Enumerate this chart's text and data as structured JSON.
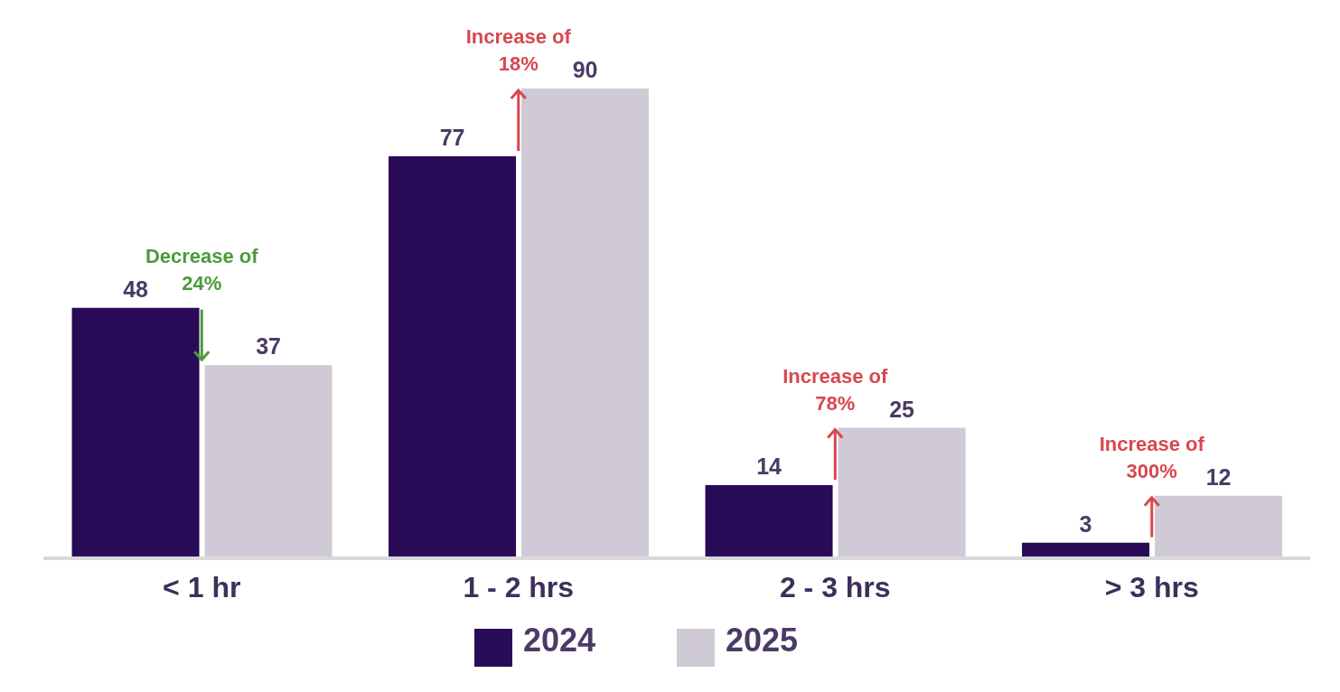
{
  "chart_data": {
    "type": "bar",
    "categories": [
      "< 1 hr",
      "1 - 2 hrs",
      "2 - 3 hrs",
      "> 3 hrs"
    ],
    "series": [
      {
        "name": "2024",
        "color": "#2a0b57",
        "values": [
          48,
          77,
          14,
          3
        ]
      },
      {
        "name": "2025",
        "color": "#cfcad6",
        "values": [
          37,
          90,
          25,
          12
        ]
      }
    ],
    "data_labels": true,
    "legend": "bottom",
    "grid": false,
    "annotations": [
      {
        "text": "Decrease of 24%",
        "x": "< 1 hr",
        "y": 48
      },
      {
        "text": "Increase of 18%",
        "x": "1 - 2 hrs",
        "y": 90
      },
      {
        "text": "Increase of 78%",
        "x": "2 - 3 hrs",
        "y": 25
      },
      {
        "text": "Increase of 300%",
        "x": "> 3 hrs",
        "y": 12
      }
    ]
  }
}
